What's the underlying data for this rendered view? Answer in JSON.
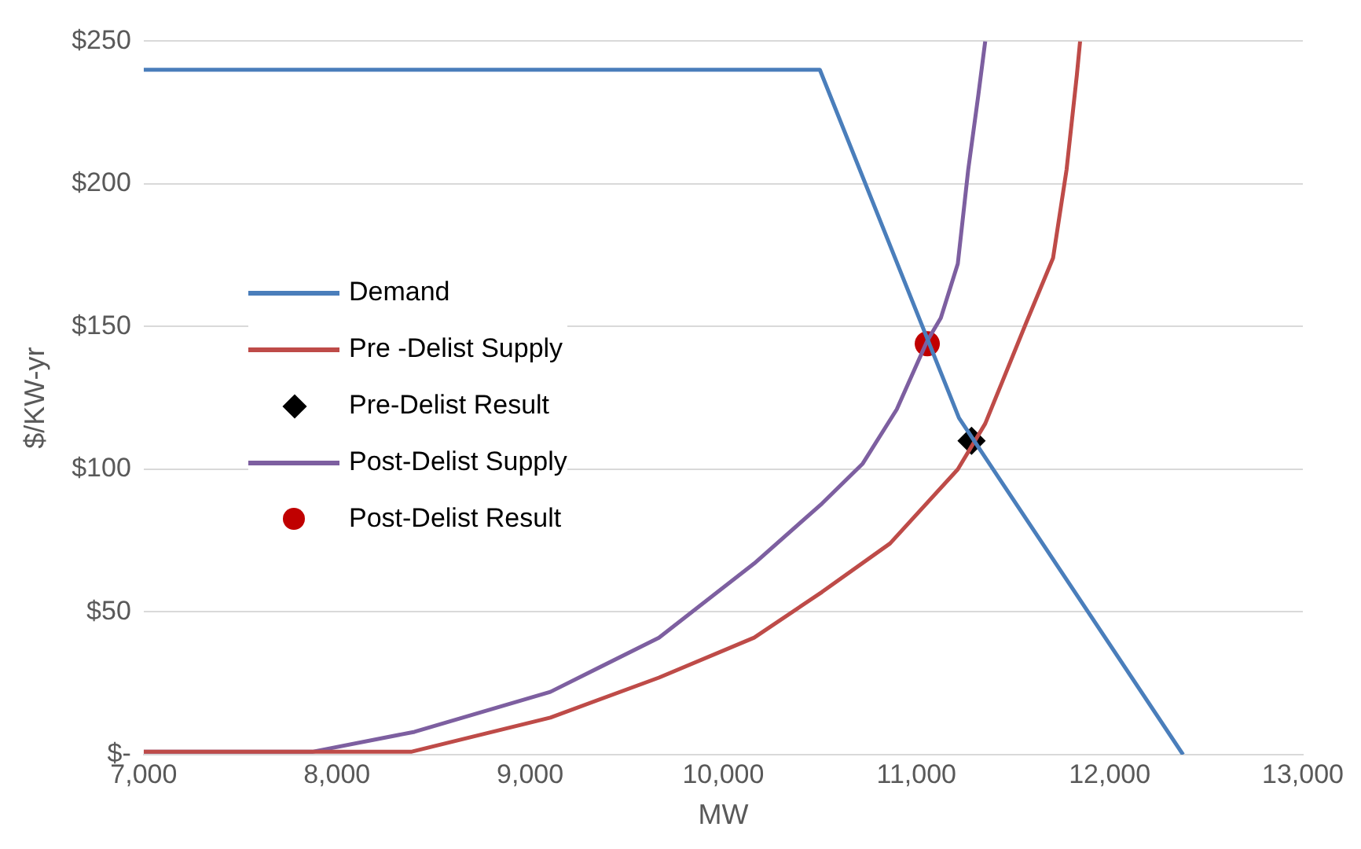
{
  "chart_data": {
    "type": "line",
    "xlabel": "MW",
    "ylabel": "$/KW-yr",
    "xlim": [
      7000,
      13000
    ],
    "xticks": [
      {
        "value": 7000,
        "label": "7,000"
      },
      {
        "value": 8000,
        "label": "8,000"
      },
      {
        "value": 9000,
        "label": "9,000"
      },
      {
        "value": 10000,
        "label": "10,000"
      },
      {
        "value": 11000,
        "label": "11,000"
      },
      {
        "value": 12000,
        "label": "12,000"
      },
      {
        "value": 13000,
        "label": "13,000"
      }
    ],
    "ylim": [
      0,
      250
    ],
    "yticks": [
      {
        "value": 0,
        "label": "$-"
      },
      {
        "value": 50,
        "label": "$50"
      },
      {
        "value": 100,
        "label": "$100"
      },
      {
        "value": 150,
        "label": "$150"
      },
      {
        "value": 200,
        "label": "$200"
      },
      {
        "value": 250,
        "label": "$250"
      }
    ],
    "grid": "y",
    "legend": "left",
    "series": [
      {
        "name": "Demand",
        "type": "line",
        "color": "#4a7ebb",
        "marker": "none",
        "x": [
          7000,
          10500,
          11220,
          12380
        ],
        "values": [
          240,
          240,
          118,
          0
        ]
      },
      {
        "name": "Pre -Delist Supply",
        "type": "line",
        "color": "#be4b48",
        "marker": "none",
        "x": [
          7000,
          8384,
          9105,
          9667,
          10160,
          10511,
          10863,
          11214,
          11356,
          11566,
          11707,
          11777,
          11830,
          11847
        ],
        "values": [
          1,
          1,
          13,
          27,
          41,
          57,
          74,
          100,
          116,
          151,
          174,
          205,
          238,
          250
        ]
      },
      {
        "name": "Pre-Delist Result",
        "type": "scatter",
        "color": "#000000",
        "marker": "diamond",
        "x": [
          11285
        ],
        "values": [
          110
        ]
      },
      {
        "name": "Post-Delist Supply",
        "type": "line",
        "color": "#7d5fa0",
        "marker": "none",
        "x": [
          7000,
          7873,
          8402,
          9105,
          9667,
          10160,
          10511,
          10722,
          10898,
          11056,
          11126,
          11214,
          11268,
          11320,
          11356
        ],
        "values": [
          1,
          1,
          8,
          22,
          41,
          67,
          88,
          102,
          121,
          145,
          153,
          172,
          205,
          231,
          250
        ]
      },
      {
        "name": "Post-Delist Result",
        "type": "scatter",
        "color": "#c00000",
        "marker": "circle",
        "x": [
          11056
        ],
        "values": [
          144
        ]
      }
    ]
  }
}
